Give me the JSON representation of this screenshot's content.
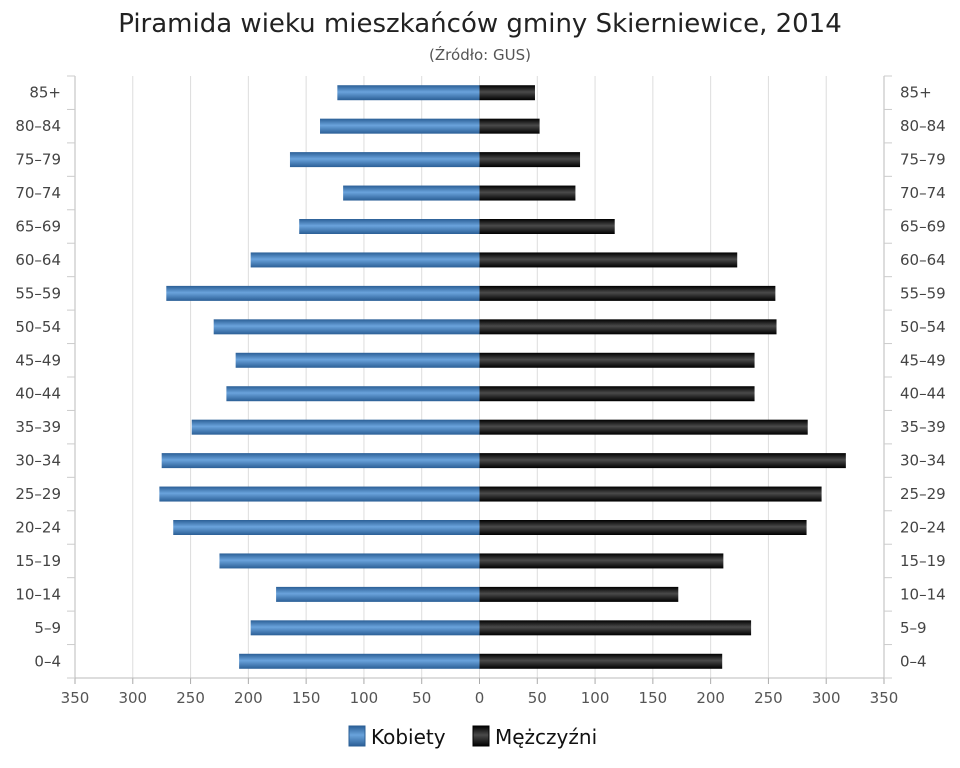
{
  "chart_data": {
    "type": "bar",
    "orientation": "horizontal",
    "layout": "population-pyramid",
    "title": "Piramida wieku mieszkańców gminy Skierniewice, 2014",
    "subtitle": "(Źródło: GUS)",
    "categories": [
      "85+",
      "80-84",
      "75-79",
      "70-74",
      "65-69",
      "60-64",
      "55-59",
      "50-54",
      "45-49",
      "40-44",
      "35-39",
      "30-34",
      "25-29",
      "20-24",
      "15-19",
      "10-14",
      "5-9",
      "0-4"
    ],
    "xlim": [
      -350,
      350
    ],
    "xticks": [
      -350,
      -300,
      -250,
      -200,
      -150,
      -100,
      -50,
      0,
      50,
      100,
      150,
      200,
      250,
      300,
      350
    ],
    "xtick_labels": [
      "350",
      "300",
      "250",
      "200",
      "150",
      "100",
      "50",
      "0",
      "50",
      "100",
      "150",
      "200",
      "250",
      "300",
      "350"
    ],
    "grid": true,
    "legend_position": "bottom-center",
    "series": [
      {
        "name": "Kobiety",
        "side": "left",
        "color": "#3a7bbf",
        "values": [
          123,
          138,
          164,
          118,
          156,
          198,
          271,
          230,
          211,
          219,
          249,
          275,
          277,
          265,
          225,
          176,
          198,
          208
        ]
      },
      {
        "name": "Mężczyźni",
        "side": "right",
        "color": "#111111",
        "values": [
          48,
          52,
          87,
          83,
          117,
          223,
          256,
          257,
          238,
          238,
          284,
          317,
          296,
          283,
          211,
          172,
          235,
          210
        ]
      }
    ]
  }
}
